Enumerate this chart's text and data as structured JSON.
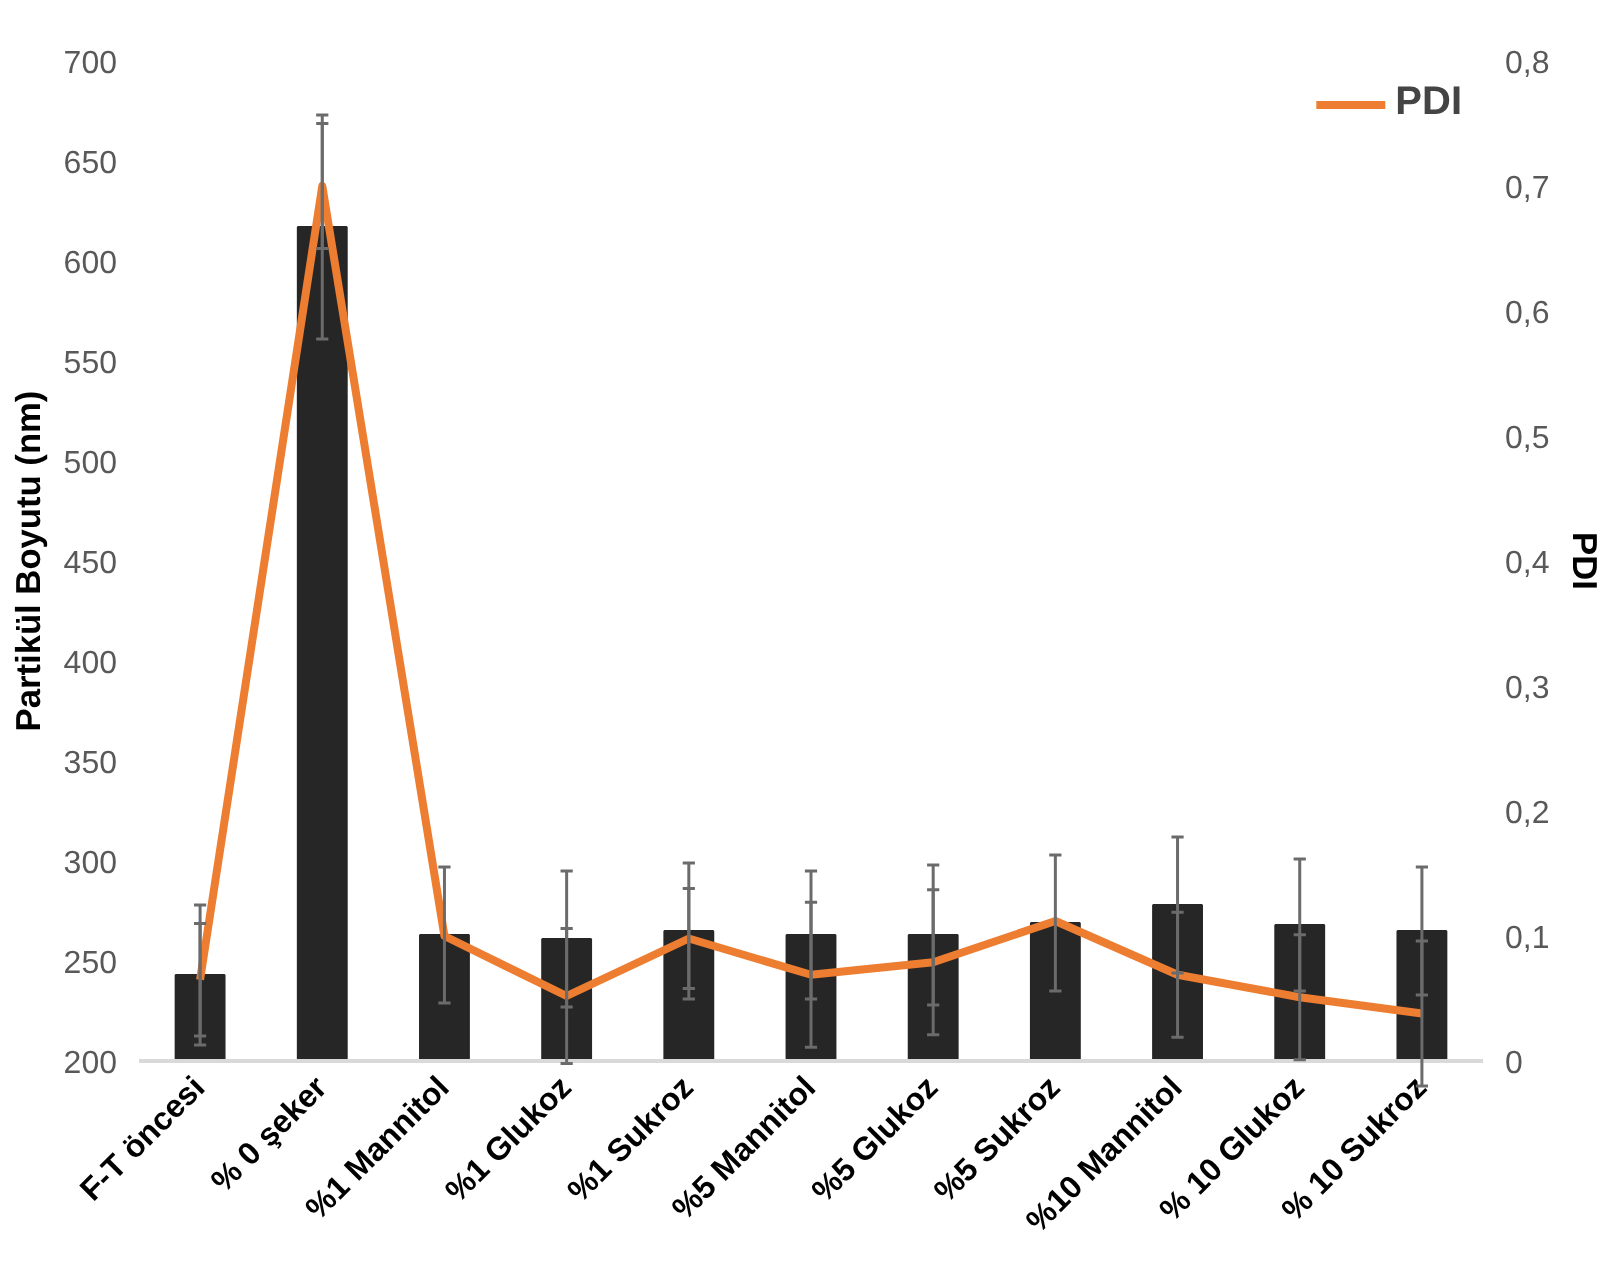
{
  "chart_data": {
    "type": "bar",
    "categories": [
      "F-T öncesi",
      "% 0 şeker",
      "%1 Mannitol",
      "%1 Glukoz",
      "%1 Sukroz",
      "%5 Mannitol",
      "%5 Glukoz",
      "%5 Sukroz",
      "%10 Mannitol",
      "% 10 Glukoz",
      "% 10 Sukroz"
    ],
    "ylabel": "Partikül Boyutu (nm)",
    "y2label": "PDI",
    "series": [
      {
        "color": "#262626",
        "values": [
          243,
          617,
          263,
          261,
          265,
          263,
          263,
          269,
          278,
          268,
          265
        ],
        "errors": [
          35,
          56,
          34,
          34,
          34,
          32,
          35,
          34,
          34,
          33,
          32
        ]
      },
      {
        "type": "line",
        "axis": "y2",
        "name": "PDI",
        "color": "#ed7d31",
        "values": [
          0.065,
          0.7,
          0.1,
          0.052,
          0.098,
          0.069,
          0.079,
          0.112,
          0.069,
          0.051,
          0.038
        ],
        "errors": [
          0.045,
          0.05,
          null,
          0.054,
          0.04,
          0.058,
          0.058,
          null,
          0.05,
          0.05,
          0.058
        ]
      }
    ],
    "ylim": [
      200,
      700
    ],
    "yticks": [
      200,
      250,
      300,
      350,
      400,
      450,
      500,
      550,
      600,
      650,
      700
    ],
    "y2lim": [
      0,
      0.8
    ],
    "y2ticks": [
      0,
      {
        "value": 0.1,
        "label": "0,1"
      },
      {
        "value": 0.2,
        "label": "0,2"
      },
      {
        "value": 0.3,
        "label": "0,3"
      },
      {
        "value": 0.4,
        "label": "0,4"
      },
      {
        "value": 0.5,
        "label": "0,5"
      },
      {
        "value": 0.6,
        "label": "0,6"
      },
      {
        "value": 0.7,
        "label": "0,7"
      },
      {
        "value": 0.8,
        "label": "0,8"
      }
    ],
    "grid": false,
    "legend": "top right",
    "marker": "none",
    "line_style": "solid"
  }
}
